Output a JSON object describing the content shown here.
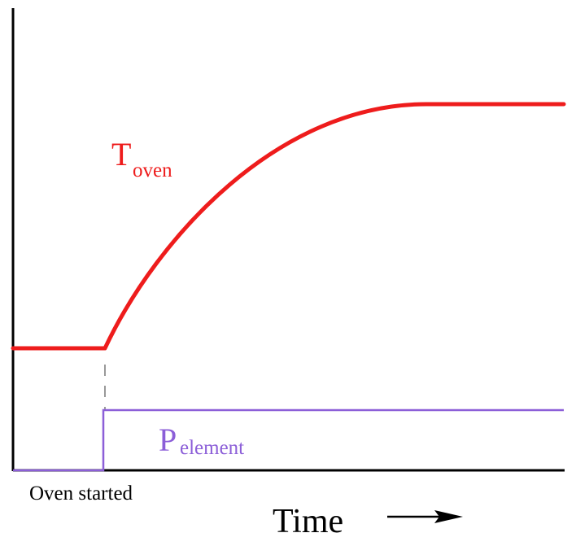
{
  "labels": {
    "temperature_main": "T",
    "temperature_sub": "oven",
    "power_main": "P",
    "power_sub": "element",
    "event": "Oven started",
    "x_axis": "Time"
  },
  "icons": {
    "direction": "right-arrow-icon"
  },
  "colors": {
    "temperature": "#ee1c1c",
    "power": "#8c5fd8",
    "axis": "#000000",
    "start_marker": "#999999"
  },
  "series": {
    "temperature": {
      "baseline_before_start": "low constant",
      "after_start": "rises exponentially then levels off",
      "final_state": "high constant"
    },
    "power": {
      "before_start": "off",
      "after_start": "on"
    }
  }
}
